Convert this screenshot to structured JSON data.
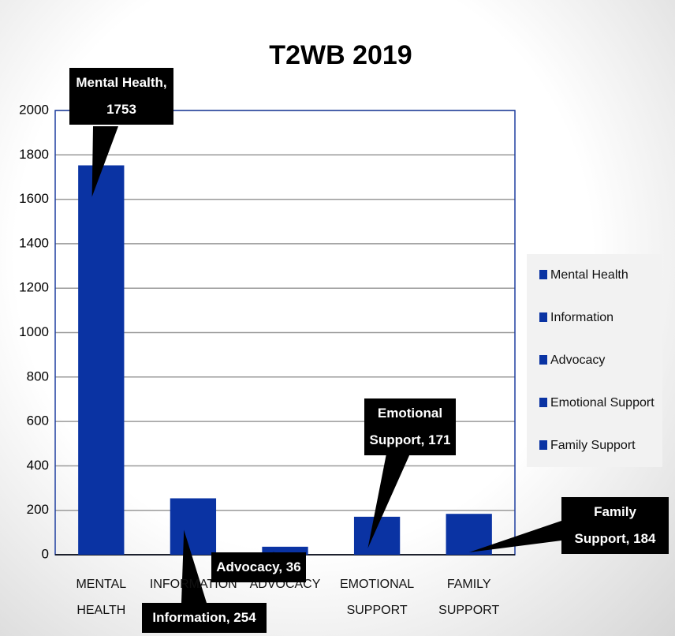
{
  "chart_data": {
    "type": "bar",
    "title": "T2WB 2019",
    "categories": [
      "MENTAL HEALTH",
      "INFORMATION",
      "ADVOCACY",
      "EMOTIONAL SUPPORT",
      "FAMILY SUPPORT"
    ],
    "values": [
      1753,
      254,
      36,
      171,
      184
    ],
    "value_labels": [
      "Mental Health, 1753",
      "Information, 254",
      "Advocacy, 36",
      "Emotional Support, 171",
      "Family Support, 184"
    ],
    "legend": [
      "Mental Health",
      "Information",
      "Advocacy",
      "Emotional Support",
      "Family Support"
    ],
    "color": "#0a33a3",
    "ylim": [
      0,
      2000
    ],
    "yticks": [
      0,
      200,
      400,
      600,
      800,
      1000,
      1200,
      1400,
      1600,
      1800,
      2000
    ],
    "grid": true
  }
}
